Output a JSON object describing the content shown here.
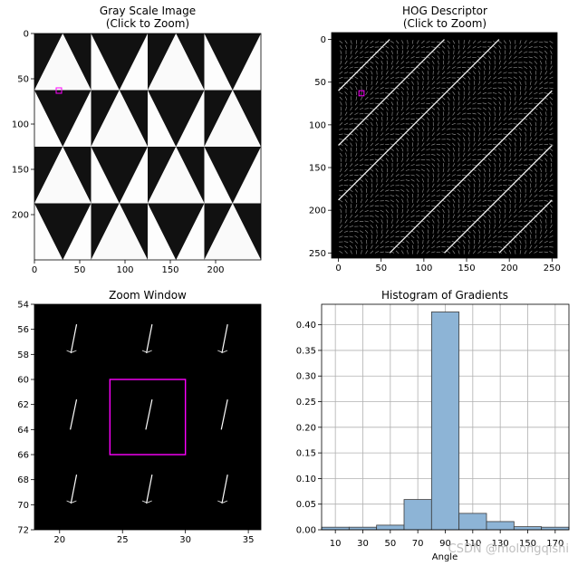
{
  "figure": {
    "gray": {
      "title": "Gray Scale Image",
      "subtitle": "(Click to Zoom)"
    },
    "hog": {
      "title": "HOG Descriptor",
      "subtitle": "(Click to Zoom)"
    },
    "zoom": {
      "title": "Zoom Window"
    },
    "watermark": "CSDN @molongqishi"
  },
  "colors": {
    "bar_fill": "#8db4d6",
    "bar_edge": "#3b3b3b",
    "marker": "#ff00ff",
    "grid": "#b0b0b0"
  },
  "chart_data": [
    {
      "type": "image",
      "panel": "gray",
      "title": "Gray Scale Image",
      "subtitle": "(Click to Zoom)",
      "xlim": [
        0,
        250
      ],
      "ylim": [
        250,
        0
      ],
      "xticks": [
        0,
        50,
        100,
        150,
        200
      ],
      "yticks": [
        0,
        50,
        100,
        150,
        200
      ],
      "tiles": 4,
      "marker_box": {
        "x": [
          24,
          30
        ],
        "y": [
          60,
          66
        ]
      }
    },
    {
      "type": "image",
      "panel": "hog",
      "title": "HOG Descriptor",
      "subtitle": "(Click to Zoom)",
      "xlim": [
        -8,
        256
      ],
      "ylim": [
        256,
        -8
      ],
      "xticks": [
        0,
        50,
        100,
        150,
        200,
        250
      ],
      "yticks": [
        0,
        50,
        100,
        150,
        200,
        250
      ],
      "marker_box": {
        "x": [
          24,
          30
        ],
        "y": [
          60,
          66
        ]
      }
    },
    {
      "type": "image",
      "panel": "zoom",
      "title": "Zoom Window",
      "xlim": [
        18,
        36
      ],
      "ylim": [
        72,
        54
      ],
      "xticks": [
        20,
        25,
        30,
        35
      ],
      "yticks": [
        54,
        56,
        58,
        60,
        62,
        64,
        66,
        68,
        70,
        72
      ],
      "marker_box": {
        "x": [
          24,
          30
        ],
        "y": [
          60,
          66
        ]
      },
      "cells": [
        {
          "x": 21,
          "y": 57,
          "kind": "fan"
        },
        {
          "x": 27,
          "y": 57,
          "kind": "fan"
        },
        {
          "x": 33,
          "y": 57,
          "kind": "fan"
        },
        {
          "x": 21,
          "y": 63,
          "kind": "single"
        },
        {
          "x": 27,
          "y": 63,
          "kind": "single"
        },
        {
          "x": 33,
          "y": 63,
          "kind": "single"
        },
        {
          "x": 21,
          "y": 69,
          "kind": "fan"
        },
        {
          "x": 27,
          "y": 69,
          "kind": "fan"
        },
        {
          "x": 33,
          "y": 69,
          "kind": "fan"
        }
      ]
    },
    {
      "type": "bar",
      "panel": "histogram",
      "title": "Histogram of Gradients",
      "xlabel": "Angle",
      "ylabel": "",
      "categories": [
        "10",
        "30",
        "50",
        "70",
        "90",
        "110",
        "130",
        "150",
        "170"
      ],
      "values": [
        0.005,
        0.005,
        0.009,
        0.059,
        0.425,
        0.032,
        0.016,
        0.006,
        0.005
      ],
      "ylim": [
        0,
        0.44
      ],
      "yticks": [
        0.0,
        0.05,
        0.1,
        0.15,
        0.2,
        0.25,
        0.3,
        0.35,
        0.4
      ],
      "grid": true
    }
  ]
}
